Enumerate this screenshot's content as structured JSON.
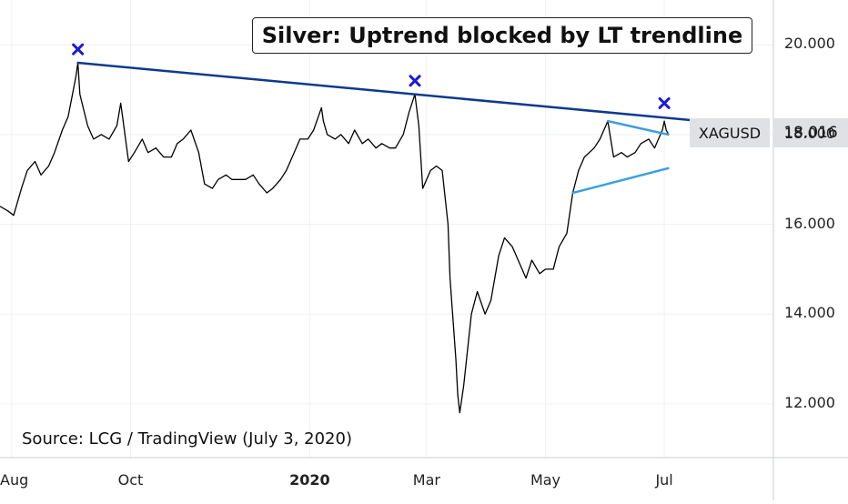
{
  "chart_data": {
    "type": "line",
    "title": "Silver: Uptrend blocked by LT trendline",
    "source": "Source: LCG / TradingView (July 3, 2020)",
    "symbol": "XAGUSD",
    "last_price": "18.016",
    "ylim": [
      10.8,
      21.0
    ],
    "xlim": [
      "2019-07-26",
      "2020-08-26"
    ],
    "y_ticks": [
      "20.000",
      "18.000",
      "16.000",
      "14.000",
      "12.000"
    ],
    "y_tick_values": [
      20,
      18,
      16,
      14,
      12
    ],
    "x_ticks": [
      {
        "label": "Aug",
        "date": "2019-08-01",
        "bold": false
      },
      {
        "label": "Oct",
        "date": "2019-10-01",
        "bold": false
      },
      {
        "label": "2020",
        "date": "2020-01-01",
        "bold": true
      },
      {
        "label": "Mar",
        "date": "2020-03-01",
        "bold": false
      },
      {
        "label": "May",
        "date": "2020-05-01",
        "bold": false
      },
      {
        "label": "Jul",
        "date": "2020-07-01",
        "bold": false
      }
    ],
    "grid": true,
    "series": [
      {
        "color": "#000000",
        "points": [
          [
            "2019-07-26",
            16.4
          ],
          [
            "2019-07-30",
            16.3
          ],
          [
            "2019-08-02",
            16.2
          ],
          [
            "2019-08-06",
            16.8
          ],
          [
            "2019-08-09",
            17.2
          ],
          [
            "2019-08-13",
            17.4
          ],
          [
            "2019-08-16",
            17.1
          ],
          [
            "2019-08-20",
            17.3
          ],
          [
            "2019-08-23",
            17.6
          ],
          [
            "2019-08-27",
            18.1
          ],
          [
            "2019-08-30",
            18.4
          ],
          [
            "2019-09-03",
            19.3
          ],
          [
            "2019-09-04",
            19.6
          ],
          [
            "2019-09-05",
            18.9
          ],
          [
            "2019-09-09",
            18.2
          ],
          [
            "2019-09-12",
            17.9
          ],
          [
            "2019-09-16",
            18.0
          ],
          [
            "2019-09-20",
            17.9
          ],
          [
            "2019-09-24",
            18.2
          ],
          [
            "2019-09-26",
            18.7
          ],
          [
            "2019-09-30",
            17.4
          ],
          [
            "2019-10-03",
            17.6
          ],
          [
            "2019-10-07",
            17.9
          ],
          [
            "2019-10-10",
            17.6
          ],
          [
            "2019-10-14",
            17.7
          ],
          [
            "2019-10-18",
            17.5
          ],
          [
            "2019-10-22",
            17.5
          ],
          [
            "2019-10-25",
            17.8
          ],
          [
            "2019-10-28",
            17.9
          ],
          [
            "2019-11-01",
            18.1
          ],
          [
            "2019-11-05",
            17.6
          ],
          [
            "2019-11-08",
            16.9
          ],
          [
            "2019-11-12",
            16.8
          ],
          [
            "2019-11-15",
            17.0
          ],
          [
            "2019-11-19",
            17.1
          ],
          [
            "2019-11-22",
            17.0
          ],
          [
            "2019-11-26",
            17.0
          ],
          [
            "2019-11-29",
            17.0
          ],
          [
            "2019-12-03",
            17.1
          ],
          [
            "2019-12-06",
            16.9
          ],
          [
            "2019-12-10",
            16.7
          ],
          [
            "2019-12-13",
            16.8
          ],
          [
            "2019-12-17",
            17.0
          ],
          [
            "2019-12-20",
            17.2
          ],
          [
            "2019-12-24",
            17.6
          ],
          [
            "2019-12-27",
            17.9
          ],
          [
            "2019-12-31",
            17.9
          ],
          [
            "2020-01-03",
            18.1
          ],
          [
            "2020-01-07",
            18.6
          ],
          [
            "2020-01-08",
            18.3
          ],
          [
            "2020-01-10",
            18.0
          ],
          [
            "2020-01-14",
            17.9
          ],
          [
            "2020-01-17",
            18.0
          ],
          [
            "2020-01-21",
            17.8
          ],
          [
            "2020-01-24",
            18.1
          ],
          [
            "2020-01-28",
            17.8
          ],
          [
            "2020-01-31",
            17.9
          ],
          [
            "2020-02-04",
            17.7
          ],
          [
            "2020-02-07",
            17.8
          ],
          [
            "2020-02-11",
            17.7
          ],
          [
            "2020-02-14",
            17.7
          ],
          [
            "2020-02-18",
            18.0
          ],
          [
            "2020-02-21",
            18.5
          ],
          [
            "2020-02-24",
            18.9
          ],
          [
            "2020-02-26",
            18.2
          ],
          [
            "2020-02-28",
            16.8
          ],
          [
            "2020-03-03",
            17.2
          ],
          [
            "2020-03-06",
            17.3
          ],
          [
            "2020-03-09",
            17.2
          ],
          [
            "2020-03-12",
            16.0
          ],
          [
            "2020-03-13",
            14.8
          ],
          [
            "2020-03-16",
            13.0
          ],
          [
            "2020-03-17",
            12.2
          ],
          [
            "2020-03-18",
            11.8
          ],
          [
            "2020-03-20",
            12.4
          ],
          [
            "2020-03-24",
            14.0
          ],
          [
            "2020-03-27",
            14.5
          ],
          [
            "2020-03-31",
            14.0
          ],
          [
            "2020-04-03",
            14.3
          ],
          [
            "2020-04-07",
            15.3
          ],
          [
            "2020-04-10",
            15.7
          ],
          [
            "2020-04-14",
            15.5
          ],
          [
            "2020-04-17",
            15.2
          ],
          [
            "2020-04-21",
            14.8
          ],
          [
            "2020-04-24",
            15.2
          ],
          [
            "2020-04-28",
            14.9
          ],
          [
            "2020-05-01",
            15.0
          ],
          [
            "2020-05-05",
            15.0
          ],
          [
            "2020-05-08",
            15.5
          ],
          [
            "2020-05-12",
            15.8
          ],
          [
            "2020-05-15",
            16.7
          ],
          [
            "2020-05-18",
            17.2
          ],
          [
            "2020-05-21",
            17.5
          ],
          [
            "2020-05-26",
            17.7
          ],
          [
            "2020-05-29",
            17.9
          ],
          [
            "2020-06-02",
            18.3
          ],
          [
            "2020-06-05",
            17.5
          ],
          [
            "2020-06-09",
            17.6
          ],
          [
            "2020-06-12",
            17.5
          ],
          [
            "2020-06-16",
            17.6
          ],
          [
            "2020-06-19",
            17.8
          ],
          [
            "2020-06-23",
            17.9
          ],
          [
            "2020-06-26",
            17.7
          ],
          [
            "2020-06-30",
            18.1
          ],
          [
            "2020-07-01",
            18.3
          ],
          [
            "2020-07-02",
            18.1
          ],
          [
            "2020-07-03",
            18.016
          ]
        ]
      }
    ],
    "annotations": {
      "trendlines": [
        {
          "color": "#0d3a8c",
          "from": [
            "2019-09-04",
            19.6
          ],
          "to": [
            "2020-07-20",
            18.3
          ]
        },
        {
          "color": "#3a9ee0",
          "from": [
            "2020-06-02",
            18.3
          ],
          "to": [
            "2020-07-03",
            18.0
          ]
        },
        {
          "color": "#3a9ee0",
          "from": [
            "2020-05-15",
            16.7
          ],
          "to": [
            "2020-07-03",
            17.25
          ]
        }
      ],
      "markers": [
        {
          "date": "2019-09-04",
          "value": 19.9,
          "color": "#1b1bd8"
        },
        {
          "date": "2020-02-24",
          "value": 19.2,
          "color": "#1b1bd8"
        },
        {
          "date": "2020-07-01",
          "value": 18.7,
          "color": "#1b1bd8"
        }
      ]
    }
  }
}
